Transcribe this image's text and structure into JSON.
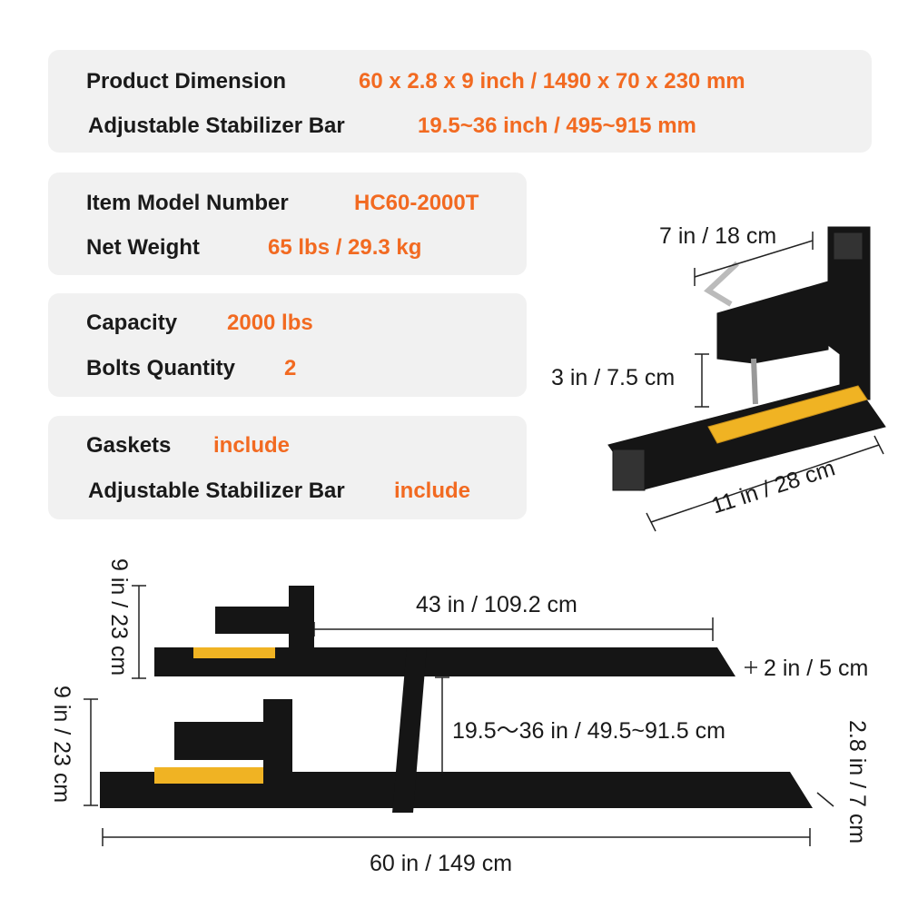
{
  "specs": {
    "product_dimension": {
      "label": "Product Dimension",
      "value": "60 x 2.8 x 9 inch / 1490 x 70 x 230 mm"
    },
    "stabilizer_bar": {
      "label": "Adjustable Stabilizer Bar",
      "value": "19.5~36 inch / 495~915 mm"
    },
    "model": {
      "label": "Item Model Number",
      "value": "HC60-2000T"
    },
    "weight": {
      "label": "Net Weight",
      "value": "65 lbs / 29.3 kg"
    },
    "capacity": {
      "label": "Capacity",
      "value": "2000 lbs"
    },
    "bolts": {
      "label": "Bolts Quantity",
      "value": "2"
    },
    "gaskets": {
      "label": "Gaskets",
      "value": "include"
    },
    "stabilizer_incl": {
      "label": "Adjustable Stabilizer Bar",
      "value": "include"
    }
  },
  "dimensions": {
    "clamp_width": "7 in / 18 cm",
    "clamp_gap": "3 in / 7.5 cm",
    "clamp_length": "11 in / 28 cm",
    "height_top": "9 in / 23 cm",
    "height_bottom": "9 in / 23 cm",
    "fork_length": "43 in / 109.2 cm",
    "tip": "2 in / 5 cm",
    "spacing": "19.5～36 in / 49.5~91.5 cm",
    "fork_height": "2.8 in / 7 cm",
    "overall_length": "60 in / 149 cm"
  },
  "colors": {
    "accent": "#f26a21",
    "steel": "#151515",
    "pad": "#f0b323",
    "panel": "#f1f1f1"
  }
}
